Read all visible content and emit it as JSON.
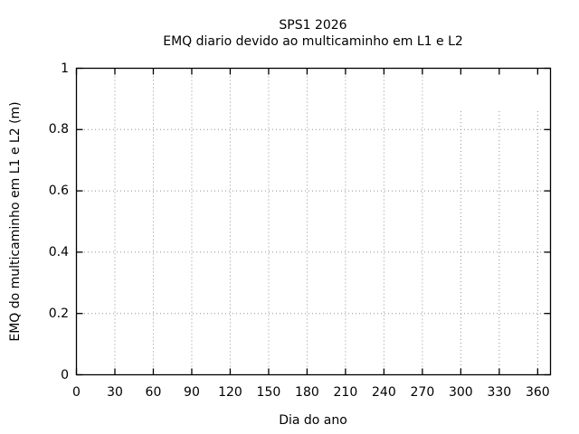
{
  "page": {
    "background_color": "#ffffff"
  },
  "chart_data": {
    "type": "line",
    "title": "SPS1 2026",
    "subtitle": "EMQ diario devido ao multicaminho em L1 e L2",
    "xlabel": "Dia do ano",
    "ylabel": "EMQ do multicaminho em L1 e L2 (m)",
    "xlim": [
      0,
      370
    ],
    "ylim": [
      0,
      1
    ],
    "xticks": [
      0,
      30,
      60,
      90,
      120,
      150,
      180,
      210,
      240,
      270,
      300,
      330,
      360
    ],
    "xtick_labels": [
      "0",
      "30",
      "60",
      "90",
      "120",
      "150",
      "180",
      "210",
      "240",
      "270",
      "300",
      "330",
      "360"
    ],
    "yticks": [
      0,
      0.2,
      0.4,
      0.6,
      0.8,
      1
    ],
    "ytick_labels": [
      "0",
      "0.2",
      "0.4",
      "0.6",
      "0.8",
      "1"
    ],
    "grid": true,
    "grid_style": "dotted",
    "ticks": "inward-mirrored",
    "series": [],
    "partial_vertical_gridlines": {
      "x": [
        300,
        330,
        360
      ],
      "y_top": 0.86
    },
    "colors": {
      "axis": "#000000",
      "grid": "#909090",
      "text": "#000000",
      "background": "#ffffff"
    }
  }
}
